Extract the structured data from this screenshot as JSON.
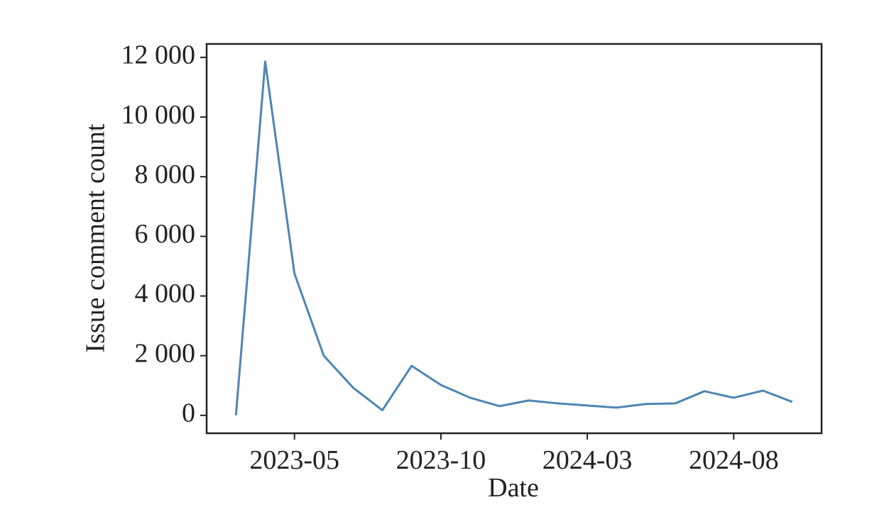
{
  "chart_data": {
    "type": "line",
    "x_label": "Date",
    "y_label": "Issue comment count",
    "x": [
      "2023-03",
      "2023-04",
      "2023-05",
      "2023-06",
      "2023-07",
      "2023-08",
      "2023-09",
      "2023-10",
      "2023-11",
      "2023-12",
      "2024-01",
      "2024-02",
      "2024-03",
      "2024-04",
      "2024-05",
      "2024-06",
      "2024-07",
      "2024-08",
      "2024-09",
      "2024-10"
    ],
    "series": [
      {
        "color": "#4c86b3",
        "values": [
          0,
          11860,
          4750,
          2000,
          930,
          170,
          1660,
          1020,
          590,
          310,
          500,
          400,
          330,
          260,
          380,
          400,
          810,
          590,
          830,
          450
        ]
      }
    ],
    "xlim": [
      "2023-02",
      "2024-11"
    ],
    "xticks": [
      "2023-05",
      "2023-10",
      "2024-03",
      "2024-08"
    ],
    "ylim": [
      -600,
      12450
    ],
    "yticks": [
      {
        "value": 0,
        "label": "0"
      },
      {
        "value": 2000,
        "label": "2 000"
      },
      {
        "value": 4000,
        "label": "4 000"
      },
      {
        "value": 6000,
        "label": "6 000"
      },
      {
        "value": 8000,
        "label": "8 000"
      },
      {
        "value": 10000,
        "label": "10 000"
      },
      {
        "value": 12000,
        "label": "12 000"
      }
    ],
    "grid": false
  }
}
